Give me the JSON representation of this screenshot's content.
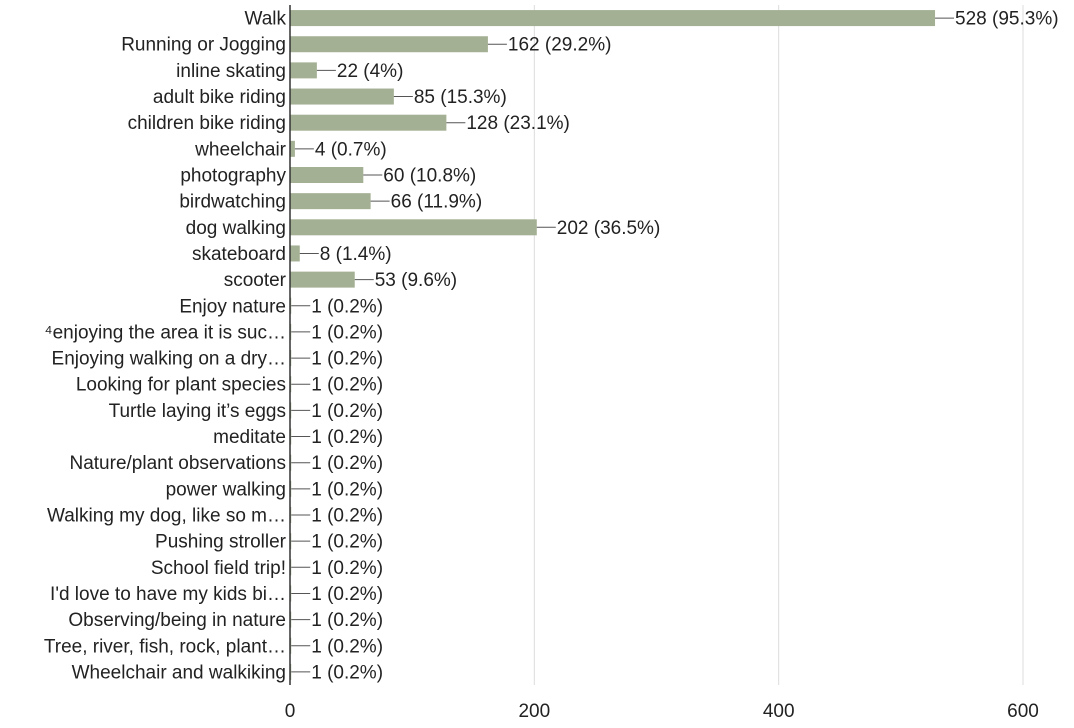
{
  "chart_data": {
    "type": "bar",
    "orientation": "horizontal",
    "categories": [
      "Walk",
      "Running or Jogging",
      "inline skating",
      "adult bike riding",
      "children bike riding",
      "wheelchair",
      "photography",
      "birdwatching",
      "dog walking",
      "skateboard",
      "scooter",
      "Enjoy nature",
      "⁴enjoying the area it is suc…",
      "Enjoying walking on a dry…",
      "Looking for plant species",
      "Turtle laying it’s eggs",
      "meditate",
      "Nature/plant observations",
      "power walking",
      "Walking my dog, like so m…",
      "Pushing stroller",
      "School field trip!",
      "I'd love to have my kids bi…",
      "Observing/being in nature",
      "Tree, river, fish, rock, plant…",
      "Wheelchair and walkiking"
    ],
    "values": [
      528,
      162,
      22,
      85,
      128,
      4,
      60,
      66,
      202,
      8,
      53,
      1,
      1,
      1,
      1,
      1,
      1,
      1,
      1,
      1,
      1,
      1,
      1,
      1,
      1,
      1
    ],
    "data_labels": [
      "528 (95.3%)",
      "162 (29.2%)",
      "22 (4%)",
      "85 (15.3%)",
      "128 (23.1%)",
      "4 (0.7%)",
      "60 (10.8%)",
      "66 (11.9%)",
      "202 (36.5%)",
      "8 (1.4%)",
      "53 (9.6%)",
      "1 (0.2%)",
      "1 (0.2%)",
      "1 (0.2%)",
      "1 (0.2%)",
      "1 (0.2%)",
      "1 (0.2%)",
      "1 (0.2%)",
      "1 (0.2%)",
      "1 (0.2%)",
      "1 (0.2%)",
      "1 (0.2%)",
      "1 (0.2%)",
      "1 (0.2%)",
      "1 (0.2%)",
      "1 (0.2%)"
    ],
    "xlim": [
      0,
      600
    ],
    "x_ticks": [
      0,
      200,
      400,
      600
    ],
    "title": "",
    "xlabel": "",
    "ylabel": "",
    "grid": true,
    "legend": "none",
    "bar_color": "#a4b093",
    "grid_color": "#dcdcdc",
    "axis_color": "#333333",
    "text_color": "#222222"
  }
}
